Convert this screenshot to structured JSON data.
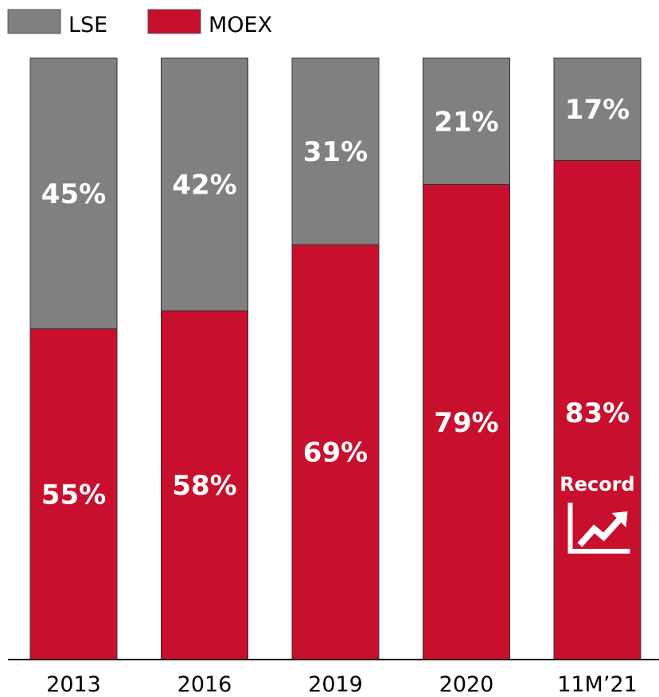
{
  "chart_data": {
    "type": "bar",
    "stacked": true,
    "categories": [
      "2013",
      "2016",
      "2019",
      "2020",
      "11M’21"
    ],
    "series": [
      {
        "name": "MOEX",
        "values": [
          55,
          58,
          69,
          79,
          83
        ],
        "labels": [
          "55%",
          "58%",
          "69%",
          "79%",
          "83%"
        ],
        "color": "#c8102e"
      },
      {
        "name": "LSE",
        "values": [
          45,
          42,
          31,
          21,
          17
        ],
        "labels": [
          "45%",
          "42%",
          "31%",
          "21%",
          "17%"
        ],
        "color": "#808080"
      }
    ],
    "ylim": [
      0,
      100
    ],
    "grid": false,
    "legend_position": "top-left",
    "annotation": {
      "category": "11M’21",
      "text": "Record",
      "icon": "chart-trend-up-icon"
    }
  }
}
